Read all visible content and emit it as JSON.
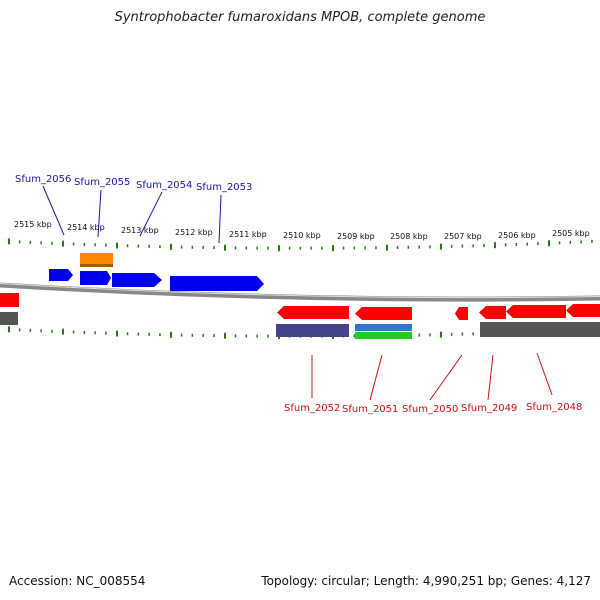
{
  "title": "Syntrophobacter fumaroxidans MPOB, complete genome",
  "footer": {
    "accession": "Accession: NC_008554",
    "summary": "Topology: circular; Length: 4,990,251 bp; Genes: 4,127"
  },
  "colors": {
    "forward_label": "#1a1a9a",
    "reverse_label": "#cc1111",
    "cds": "#ff0000",
    "cds_forward": "#0000ee",
    "tick": "#2a7a1a",
    "backbone": "#888888",
    "gene_bar": "#555555",
    "rna": "#ff8800",
    "purple": "#444488",
    "blue": "#3377cc",
    "green": "#22cc22"
  },
  "kbp_labels": [
    "2515 kbp",
    "2514 kbp",
    "2513 kbp",
    "2512 kbp",
    "2511 kbp",
    "2510 kbp",
    "2509 kbp",
    "2508 kbp",
    "2507 kbp",
    "2506 kbp",
    "2505 kbp"
  ],
  "forward_genes": [
    "Sfum_2056",
    "Sfum_2055",
    "Sfum_2054",
    "Sfum_2053"
  ],
  "reverse_genes": [
    "Sfum_2052",
    "Sfum_2051",
    "Sfum_2050",
    "Sfum_2049",
    "Sfum_2048"
  ]
}
